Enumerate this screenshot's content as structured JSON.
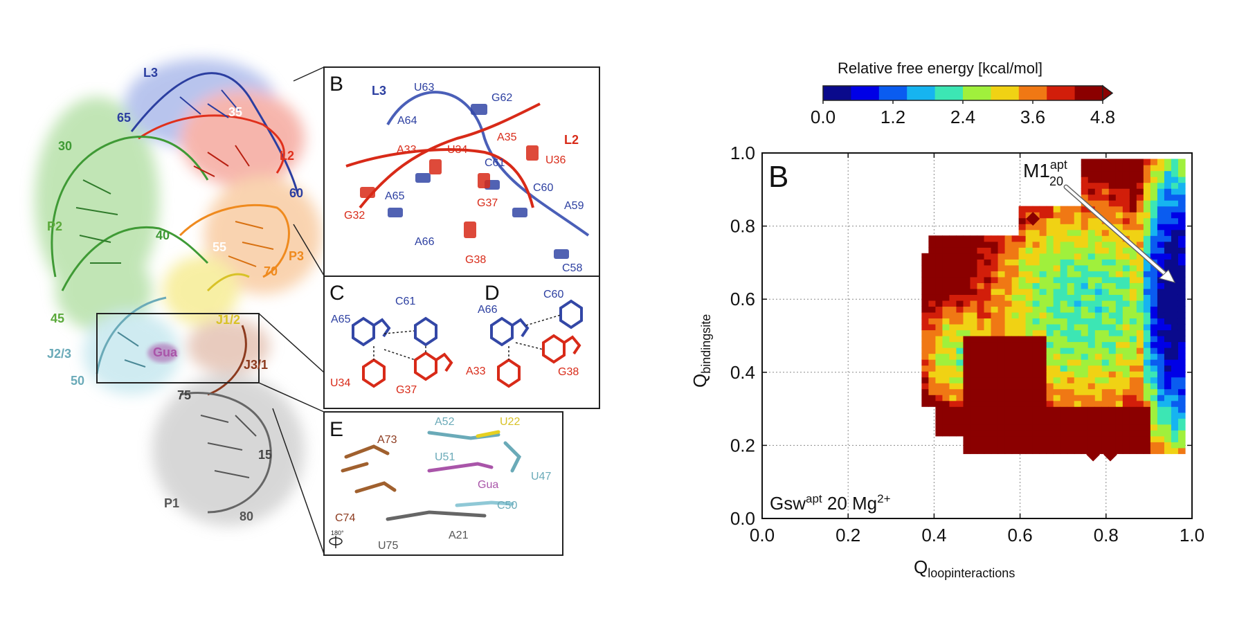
{
  "structure": {
    "labels": {
      "l3": "L3",
      "n65": "65",
      "n35": "35",
      "l2": "L2",
      "n30": "30",
      "n60": "60",
      "p2": "P2",
      "n40": "40",
      "n55": "55",
      "p3": "P3",
      "n70": "70",
      "n45": "45",
      "j12": "J1/2",
      "j23": "J2/3",
      "gua": "Gua",
      "j31": "J3/1",
      "n50": "50",
      "n75": "75",
      "n15": "15",
      "p1": "P1",
      "n80": "80"
    },
    "colors": {
      "L3": "#2b3ea0",
      "L2": "#e0301c",
      "P2": "#5aa93a",
      "P3": "#ef8a1e",
      "J12": "#d8c227",
      "J23": "#6aaab8",
      "J31": "#8c3a1e",
      "P1": "#777777",
      "Gua": "#a955a9"
    }
  },
  "panel_b": {
    "letter": "B",
    "nucleotides": [
      "L3",
      "U63",
      "G62",
      "A64",
      "A35",
      "L2",
      "A33",
      "U34",
      "U36",
      "C61",
      "C60",
      "A65",
      "G37",
      "A59",
      "G32",
      "A66",
      "G38",
      "C58"
    ]
  },
  "panel_c": {
    "letter": "C",
    "nucleotides": [
      "C61",
      "A65",
      "U34",
      "G37"
    ]
  },
  "panel_d": {
    "letter": "D",
    "nucleotides": [
      "C60",
      "A66",
      "A33",
      "G38"
    ]
  },
  "panel_e": {
    "letter": "E",
    "nucleotides": [
      "A52",
      "U22",
      "A73",
      "U51",
      "U47",
      "Gua",
      "C74",
      "C50",
      "A21",
      "U75"
    ],
    "rotation": "180°"
  },
  "colorbar": {
    "title": "Relative free energy [kcal/mol]",
    "ticks": [
      "0.0",
      "1.2",
      "2.4",
      "3.6",
      "4.8"
    ],
    "colors": [
      "#0a0a8c",
      "#0000e6",
      "#0a5cf0",
      "#16b4f0",
      "#3ce6b4",
      "#a0f03c",
      "#f0d214",
      "#f07814",
      "#d21e0a",
      "#8b0000"
    ]
  },
  "chart_data": {
    "type": "heatmap",
    "panel_letter": "B",
    "xlabel": "Q",
    "xlabel_sub": "loopinteractions",
    "ylabel": "Q",
    "ylabel_sub": "bindingsite",
    "xlim": [
      0.0,
      1.0
    ],
    "ylim": [
      0.0,
      1.0
    ],
    "xticks": [
      "0.0",
      "0.2",
      "0.4",
      "0.6",
      "0.8",
      "1.0"
    ],
    "yticks": [
      "0.0",
      "0.2",
      "0.4",
      "0.6",
      "0.8",
      "1.0"
    ],
    "zlim": [
      0.0,
      4.8
    ],
    "grid": true,
    "annotation": {
      "main": "M1",
      "sup": "apt",
      "sub": "20"
    },
    "condition": {
      "main": "Gsw",
      "sup": "apt",
      "rest": " 20 Mg",
      "ion_sup": "2+"
    },
    "basin_minimum": [
      0.96,
      0.6
    ],
    "regions": [
      {
        "level": 4.8,
        "x_range": [
          0.37,
          0.98
        ],
        "y_range": [
          0.18,
          0.98
        ]
      },
      {
        "level": 3.6,
        "x_range": [
          0.4,
          0.98
        ],
        "y_range": [
          0.25,
          0.95
        ]
      },
      {
        "level": 2.4,
        "x_range": [
          0.64,
          0.98
        ],
        "y_range": [
          0.3,
          0.93
        ]
      },
      {
        "level": 1.2,
        "x_range": [
          0.88,
          0.98
        ],
        "y_range": [
          0.38,
          0.88
        ]
      },
      {
        "level": 0.0,
        "x_range": [
          0.93,
          0.99
        ],
        "y_range": [
          0.45,
          0.78
        ]
      }
    ]
  }
}
